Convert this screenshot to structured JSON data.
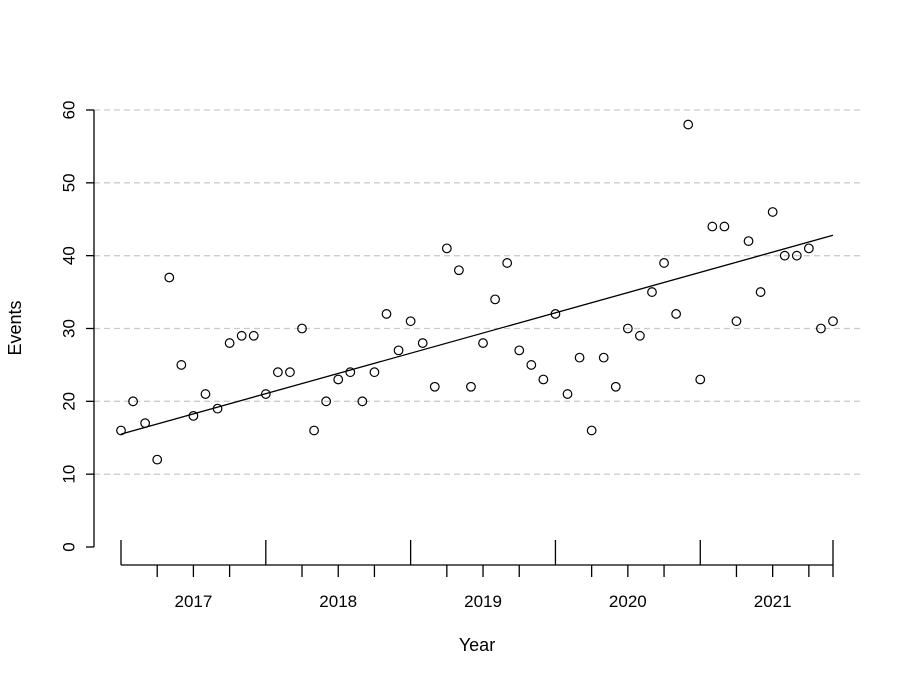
{
  "chart_data": {
    "type": "scatter",
    "title": "",
    "xlabel": "Year",
    "ylabel": "Events",
    "ylim": [
      0,
      60
    ],
    "y_ticks": [
      0,
      10,
      20,
      30,
      40,
      50,
      60
    ],
    "grid": true,
    "year_labels": [
      "2017",
      "2018",
      "2019",
      "2020",
      "2021"
    ],
    "x_range": [
      "2016-07",
      "2021-06"
    ],
    "series": [
      {
        "x": [
          "2016-07",
          "2016-08",
          "2016-09",
          "2016-10",
          "2016-11",
          "2016-12",
          "2017-01",
          "2017-02",
          "2017-03",
          "2017-04",
          "2017-05",
          "2017-06",
          "2017-07",
          "2017-08",
          "2017-09",
          "2017-10",
          "2017-11",
          "2017-12",
          "2018-01",
          "2018-02",
          "2018-03",
          "2018-04",
          "2018-05",
          "2018-06",
          "2018-07",
          "2018-08",
          "2018-09",
          "2018-10",
          "2018-11",
          "2018-12",
          "2019-01",
          "2019-02",
          "2019-03",
          "2019-04",
          "2019-05",
          "2019-06",
          "2019-07",
          "2019-08",
          "2019-09",
          "2019-10",
          "2019-11",
          "2019-12",
          "2020-01",
          "2020-02",
          "2020-03",
          "2020-04",
          "2020-05",
          "2020-06",
          "2020-07",
          "2020-08",
          "2020-09",
          "2020-10",
          "2020-11",
          "2020-12",
          "2021-01",
          "2021-02",
          "2021-03",
          "2021-04",
          "2021-05",
          "2021-06"
        ],
        "values": [
          16,
          20,
          17,
          12,
          37,
          25,
          18,
          21,
          19,
          28,
          29,
          29,
          21,
          24,
          24,
          30,
          16,
          20,
          23,
          24,
          20,
          24,
          32,
          27,
          31,
          28,
          22,
          41,
          38,
          22,
          28,
          34,
          39,
          27,
          25,
          23,
          32,
          21,
          26,
          16,
          26,
          22,
          30,
          29,
          35,
          39,
          32,
          58,
          23,
          44,
          44,
          31,
          42,
          35,
          46,
          40,
          40,
          41,
          30,
          31
        ]
      }
    ],
    "trend_line": {
      "start": [
        "2016-07",
        15.5
      ],
      "end": [
        "2021-06",
        42.8
      ]
    },
    "colors": {
      "points": "#000000",
      "line": "#000000",
      "grid": "#cccccc"
    }
  }
}
